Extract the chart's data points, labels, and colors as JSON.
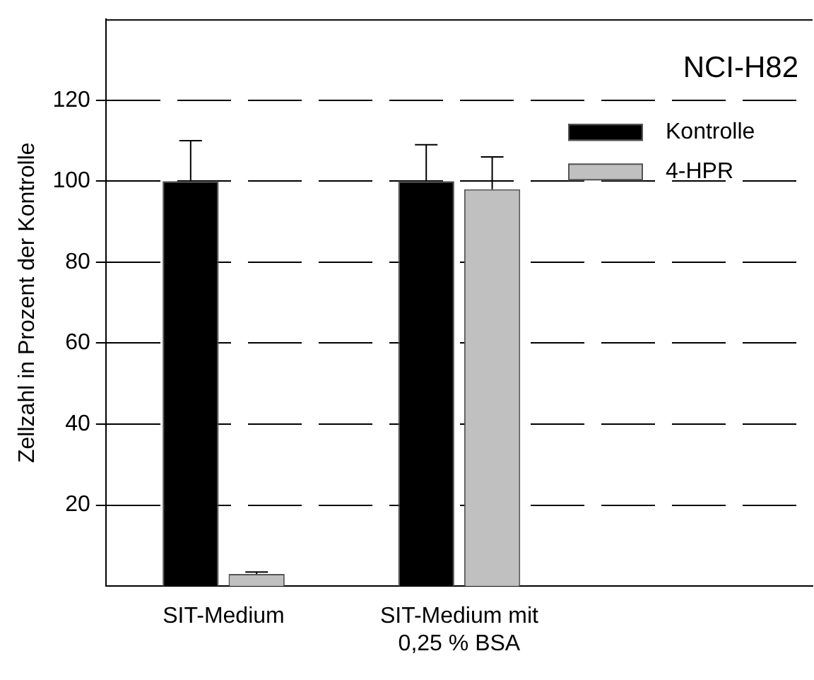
{
  "chart_data": {
    "type": "bar",
    "title": "NCI-H82",
    "ylabel": "Zellzahl in Prozent der Kontrolle",
    "categories": [
      "SIT-Medium",
      "SIT-Medium mit 0,25 % BSA",
      null
    ],
    "series": [
      {
        "name": "Kontrolle",
        "color": "#000000",
        "values": [
          100,
          100,
          null
        ],
        "errors": [
          [
            100,
            110
          ],
          [
            100,
            109
          ],
          null
        ]
      },
      {
        "name": "4-HPR",
        "color": "#c0c0c0",
        "values": [
          3,
          98,
          null
        ],
        "errors": [
          [
            3,
            3.5
          ],
          [
            98,
            106
          ],
          null
        ]
      }
    ],
    "ylim": [
      0,
      140
    ],
    "yticks": [
      20,
      40,
      60,
      80,
      100,
      120
    ],
    "grid": "y",
    "legend": "top right"
  }
}
